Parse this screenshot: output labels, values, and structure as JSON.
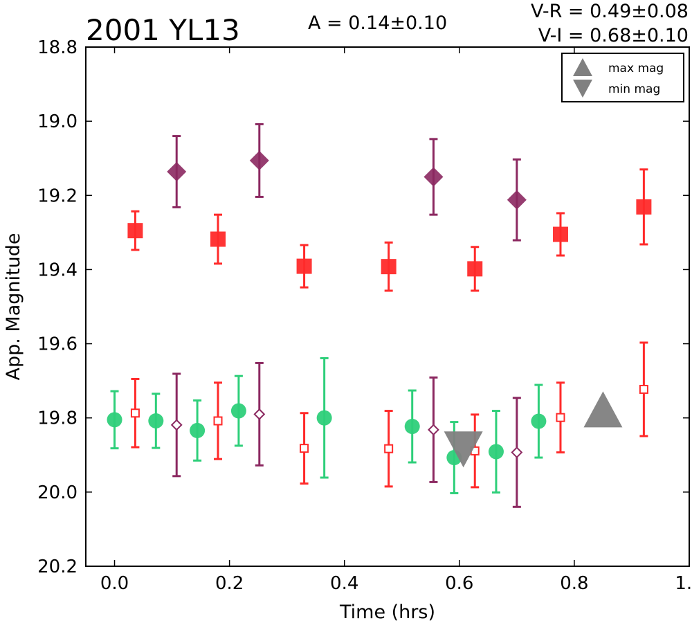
{
  "chart_data": {
    "type": "scatter",
    "title": "2001 YL13",
    "amplitude_label": "A  = 0.14±0.10",
    "color_index_lines": [
      "V-R = 0.49±0.08",
      "V-I  = 0.68±0.10"
    ],
    "xlabel": "Time (hrs)",
    "ylabel": "App. Magnitude",
    "xlim": [
      -0.05,
      1.0
    ],
    "ylim": [
      20.2,
      18.8
    ],
    "y_inverted": true,
    "xticks": [
      "0.0",
      "0.2",
      "0.4",
      "0.6",
      "0.8",
      "1.0"
    ],
    "yticks": [
      "18.8",
      "19.0",
      "19.2",
      "19.4",
      "19.6",
      "19.8",
      "20.0",
      "20.2"
    ],
    "legend": {
      "placement": "top-right",
      "entries": [
        {
          "label": "max mag",
          "marker": "triangle-up"
        },
        {
          "label": "min mag",
          "marker": "triangle-down"
        }
      ]
    },
    "series": [
      {
        "marker": "square",
        "filled": true,
        "color": "#ff2a2a",
        "points": [
          {
            "x": 0.036,
            "y": 19.295,
            "err": 0.052
          },
          {
            "x": 0.18,
            "y": 19.318,
            "err": 0.066
          },
          {
            "x": 0.33,
            "y": 19.391,
            "err": 0.057
          },
          {
            "x": 0.477,
            "y": 19.392,
            "err": 0.065
          },
          {
            "x": 0.627,
            "y": 19.398,
            "err": 0.059
          },
          {
            "x": 0.776,
            "y": 19.305,
            "err": 0.057
          },
          {
            "x": 0.921,
            "y": 19.231,
            "err": 0.101
          }
        ]
      },
      {
        "marker": "diamond",
        "filled": true,
        "color": "#8b2860",
        "points": [
          {
            "x": 0.108,
            "y": 19.136,
            "err": 0.096
          },
          {
            "x": 0.252,
            "y": 19.106,
            "err": 0.098
          },
          {
            "x": 0.555,
            "y": 19.15,
            "err": 0.102
          },
          {
            "x": 0.7,
            "y": 19.212,
            "err": 0.109
          }
        ]
      },
      {
        "marker": "circle",
        "filled": true,
        "color": "#2ecf7a",
        "points": [
          {
            "x": 0.0,
            "y": 19.805,
            "err": 0.077
          },
          {
            "x": 0.072,
            "y": 19.808,
            "err": 0.073
          },
          {
            "x": 0.144,
            "y": 19.834,
            "err": 0.081
          },
          {
            "x": 0.216,
            "y": 19.781,
            "err": 0.094
          },
          {
            "x": 0.365,
            "y": 19.8,
            "err": 0.161
          },
          {
            "x": 0.518,
            "y": 19.823,
            "err": 0.097
          },
          {
            "x": 0.591,
            "y": 19.907,
            "err": 0.096
          },
          {
            "x": 0.664,
            "y": 19.891,
            "err": 0.11
          },
          {
            "x": 0.738,
            "y": 19.809,
            "err": 0.098
          }
        ]
      },
      {
        "marker": "square",
        "filled": false,
        "color": "#ff2a2a",
        "points": [
          {
            "x": 0.036,
            "y": 19.787,
            "err": 0.092
          },
          {
            "x": 0.18,
            "y": 19.808,
            "err": 0.103
          },
          {
            "x": 0.33,
            "y": 19.882,
            "err": 0.095
          },
          {
            "x": 0.477,
            "y": 19.883,
            "err": 0.102
          },
          {
            "x": 0.627,
            "y": 19.889,
            "err": 0.098
          },
          {
            "x": 0.776,
            "y": 19.799,
            "err": 0.094
          },
          {
            "x": 0.921,
            "y": 19.723,
            "err": 0.126
          }
        ]
      },
      {
        "marker": "diamond",
        "filled": false,
        "color": "#8b2860",
        "points": [
          {
            "x": 0.108,
            "y": 19.819,
            "err": 0.138
          },
          {
            "x": 0.252,
            "y": 19.79,
            "err": 0.138
          },
          {
            "x": 0.555,
            "y": 19.832,
            "err": 0.141
          },
          {
            "x": 0.7,
            "y": 19.893,
            "err": 0.147
          }
        ]
      }
    ],
    "extrema": [
      {
        "type": "max mag",
        "marker": "triangle-up",
        "x": 0.85,
        "y": 19.777,
        "color": "#808080"
      },
      {
        "type": "min mag",
        "marker": "triangle-down",
        "x": 0.607,
        "y": 19.885,
        "color": "#808080"
      }
    ]
  }
}
